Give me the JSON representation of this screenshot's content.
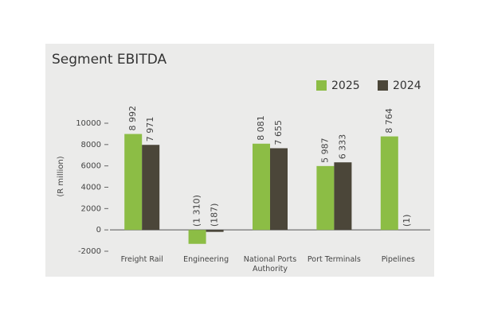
{
  "chart_data": {
    "type": "bar",
    "title": "Segment EBITDA",
    "y_label": "(R million)",
    "categories": [
      "Freight Rail",
      "Engineering",
      "National Ports Authority",
      "Port Terminals",
      "Pipelines"
    ],
    "series": [
      {
        "name": "2025",
        "color": "#8cbd45",
        "values": [
          8992,
          -1310,
          8081,
          5987,
          8764
        ],
        "value_labels": [
          "8 992",
          "(1 310)",
          "8 081",
          "5 987",
          "8 764"
        ]
      },
      {
        "name": "2024",
        "color": "#4b4639",
        "values": [
          7971,
          -187,
          7655,
          6333,
          -1
        ],
        "value_labels": [
          "7 971",
          "(187)",
          "7 655",
          "6 333",
          "(1)"
        ]
      }
    ],
    "ylim": [
      -2000,
      10000
    ],
    "yticks": [
      -2000,
      0,
      2000,
      4000,
      6000,
      8000,
      10000
    ],
    "grid": false,
    "legend": "top-right"
  }
}
